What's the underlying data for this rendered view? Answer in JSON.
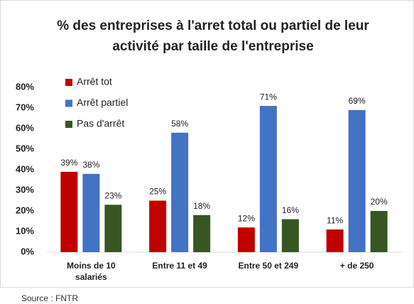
{
  "chart_data": {
    "type": "bar",
    "title": "% des entreprises à l'arret total ou partiel de leur activité par taille de l'entreprise",
    "categories": [
      "Moins de 10 salariés",
      "Entre 11 et 49",
      "Entre 50 et 249",
      "+ de 250"
    ],
    "series": [
      {
        "name": "Arrêt tot",
        "color": "#c00000",
        "values": [
          39,
          25,
          12,
          11
        ],
        "value_labels": [
          "39%",
          "25%",
          "12%",
          "11%"
        ]
      },
      {
        "name": "Arrêt partiel",
        "color": "#4472c4",
        "values": [
          38,
          58,
          71,
          69
        ],
        "value_labels": [
          "38%",
          "58%",
          "71%",
          "69%"
        ]
      },
      {
        "name": "Pas d'arrêt",
        "color": "#375623",
        "values": [
          23,
          18,
          16,
          20
        ],
        "value_labels": [
          "23%",
          "18%",
          "16%",
          "20%"
        ]
      }
    ],
    "ylim": [
      0,
      80
    ],
    "yticks": [
      {
        "value": 0,
        "label": "0%"
      },
      {
        "value": 10,
        "label": "10%"
      },
      {
        "value": 20,
        "label": "20%"
      },
      {
        "value": 30,
        "label": "30%"
      },
      {
        "value": 40,
        "label": "40%"
      },
      {
        "value": 50,
        "label": "50%"
      },
      {
        "value": 60,
        "label": "60%"
      },
      {
        "value": 70,
        "label": "70%"
      },
      {
        "value": 80,
        "label": "80%"
      }
    ],
    "legend": "upper left",
    "source": "Source : FNTR"
  }
}
